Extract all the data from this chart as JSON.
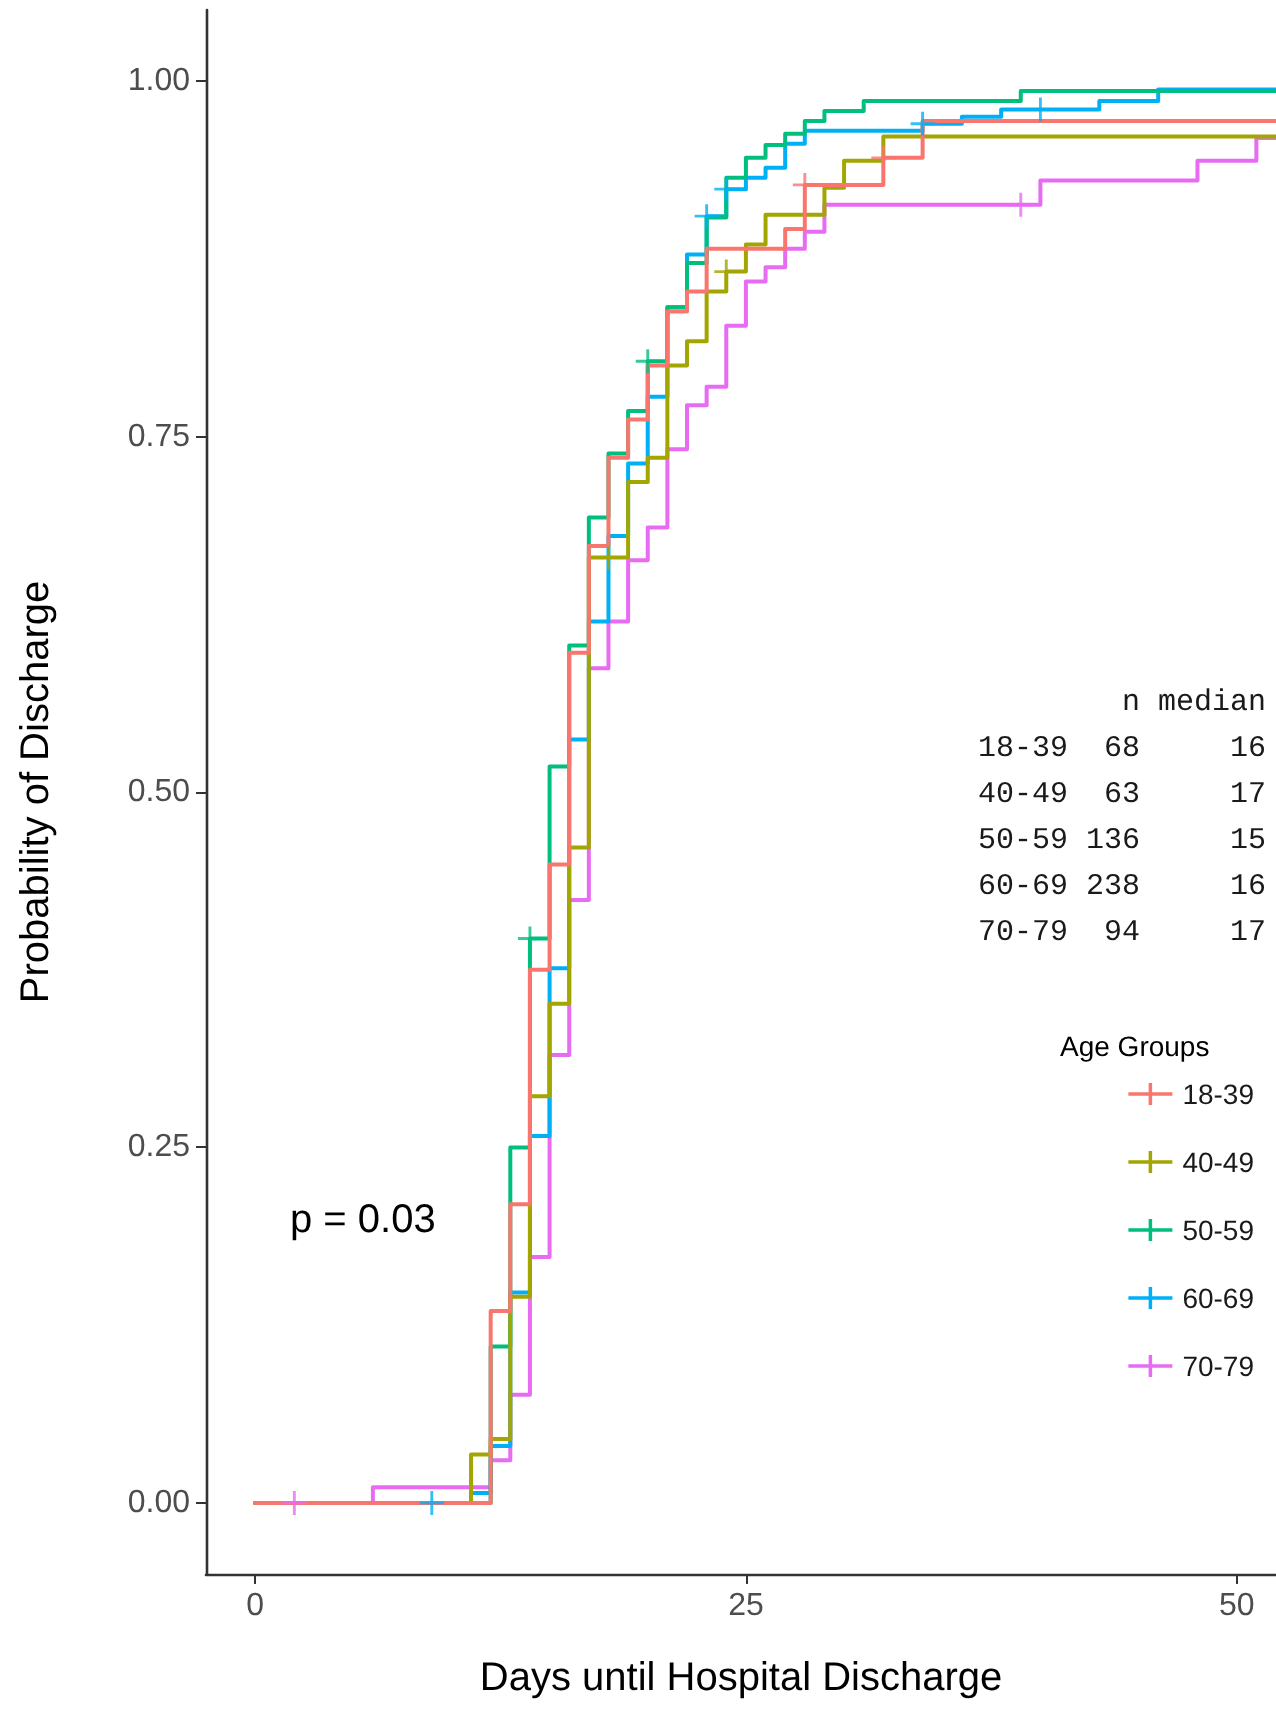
{
  "chart_data": {
    "type": "step",
    "xlabel": "Days until Hospital Discharge",
    "ylabel": "Probability of Discharge",
    "legend_title": "Age Groups",
    "annotations": [
      "p = 0.03",
      "n median",
      "18-39  68     16",
      "40-49  63     17",
      "50-59 136     15",
      "60-69 238     16",
      "70-79  94     17"
    ],
    "xlim": [
      -2.5,
      52
    ],
    "xticks": [
      0,
      25,
      50
    ],
    "ylim": [
      -0.05,
      1.05
    ],
    "yticks": [
      {
        "value": 0,
        "label": "0.00"
      },
      {
        "value": 0.25,
        "label": "0.25"
      },
      {
        "value": 0.5,
        "label": "0.50"
      },
      {
        "value": 0.75,
        "label": "0.75"
      },
      {
        "value": 1,
        "label": "1.00"
      }
    ],
    "grid": false,
    "legend": "right",
    "line_style": "solid",
    "series": [
      {
        "name": "18-39",
        "color": "#f8766d",
        "x": [
          0,
          12,
          13,
          14,
          15,
          16,
          17,
          18,
          19,
          20,
          21,
          22,
          23,
          27,
          28,
          32,
          34,
          52
        ],
        "values": [
          0,
          0.135,
          0.21,
          0.375,
          0.449,
          0.598,
          0.673,
          0.735,
          0.762,
          0.8,
          0.838,
          0.852,
          0.882,
          0.896,
          0.927,
          0.946,
          0.972,
          0.972
        ]
      },
      {
        "name": "40-49",
        "color": "#a3a500",
        "x": [
          0,
          11,
          12,
          13,
          14,
          15,
          16,
          17,
          19,
          20,
          21,
          22,
          23,
          24,
          25,
          26,
          29,
          30,
          32,
          52
        ],
        "values": [
          0,
          0.034,
          0.045,
          0.145,
          0.286,
          0.351,
          0.461,
          0.665,
          0.718,
          0.735,
          0.8,
          0.817,
          0.852,
          0.866,
          0.885,
          0.906,
          0.925,
          0.944,
          0.961,
          0.961
        ]
      },
      {
        "name": "50-59",
        "color": "#00bf7d",
        "x": [
          0,
          12,
          13,
          14,
          15,
          16,
          17,
          18,
          19,
          20,
          21,
          22,
          23,
          24,
          25,
          26,
          27,
          28,
          29,
          31,
          39,
          52
        ],
        "values": [
          0,
          0.11,
          0.25,
          0.397,
          0.518,
          0.603,
          0.693,
          0.738,
          0.768,
          0.803,
          0.841,
          0.872,
          0.904,
          0.932,
          0.946,
          0.955,
          0.963,
          0.972,
          0.979,
          0.986,
          0.993,
          0.993
        ]
      },
      {
        "name": "60-69",
        "color": "#00b0f6",
        "x": [
          0,
          11,
          12,
          13,
          14,
          15,
          16,
          17,
          18,
          19,
          20,
          21,
          22,
          23,
          24,
          25,
          26,
          27,
          28,
          34,
          36,
          38,
          43,
          46,
          52
        ],
        "values": [
          0,
          0.007,
          0.04,
          0.148,
          0.258,
          0.376,
          0.537,
          0.62,
          0.68,
          0.731,
          0.778,
          0.841,
          0.878,
          0.905,
          0.924,
          0.932,
          0.939,
          0.956,
          0.965,
          0.97,
          0.975,
          0.98,
          0.986,
          0.994,
          0.994
        ]
      },
      {
        "name": "70-79",
        "color": "#e76bf3",
        "x": [
          0,
          6,
          12,
          13,
          14,
          15,
          16,
          17,
          18,
          19,
          20,
          21,
          22,
          23,
          24,
          25,
          26,
          27,
          28,
          29,
          40,
          48,
          51,
          52
        ],
        "values": [
          0,
          0.011,
          0.03,
          0.076,
          0.173,
          0.315,
          0.424,
          0.587,
          0.62,
          0.663,
          0.686,
          0.741,
          0.772,
          0.785,
          0.828,
          0.859,
          0.869,
          0.882,
          0.894,
          0.913,
          0.93,
          0.944,
          0.96,
          0.96
        ]
      },
      {
        "type": "scatter",
        "marker": "cross",
        "color": "#f8766d",
        "x": [
          28,
          32
        ],
        "values": [
          0.927,
          0.946
        ]
      },
      {
        "type": "scatter",
        "marker": "cross",
        "color": "#a3a500",
        "x": [
          18,
          24
        ],
        "values": [
          0.665,
          0.866
        ]
      },
      {
        "type": "scatter",
        "marker": "cross",
        "color": "#00bf7d",
        "x": [
          14,
          20
        ],
        "values": [
          0.397,
          0.803
        ]
      },
      {
        "type": "scatter",
        "marker": "cross",
        "color": "#00b0f6",
        "x": [
          9,
          23,
          24,
          34,
          40
        ],
        "values": [
          0,
          0.905,
          0.924,
          0.97,
          0.98
        ]
      },
      {
        "type": "scatter",
        "marker": "cross",
        "color": "#e76bf3",
        "x": [
          2,
          39
        ],
        "values": [
          0,
          0.913
        ]
      }
    ]
  }
}
